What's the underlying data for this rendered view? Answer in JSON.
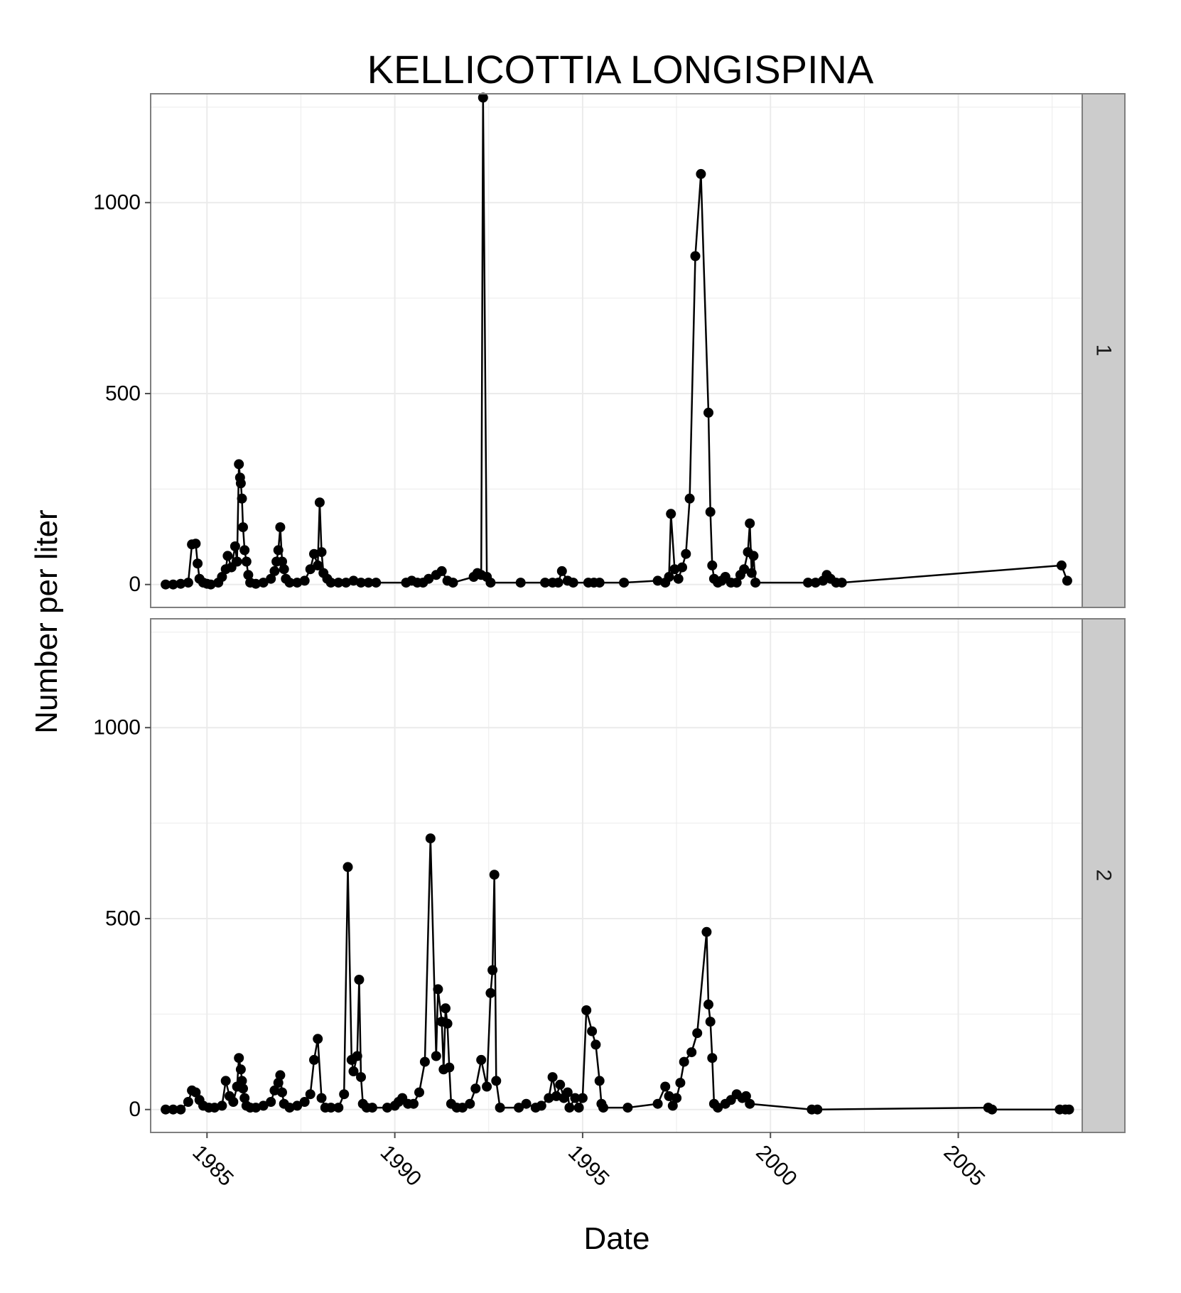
{
  "chart_data": {
    "type": "line",
    "title": "KELLICOTTIA LONGISPINA",
    "xlabel": "Date",
    "ylabel": "Number per liter",
    "xlim": [
      1983.5,
      2008.3
    ],
    "ylim": [
      -60,
      1285
    ],
    "x_ticks": [
      1985,
      1990,
      1995,
      2000,
      2005
    ],
    "y_ticks": [
      0,
      500,
      1000
    ],
    "grid": true,
    "legend": "none",
    "markers": "filled-circle",
    "colors": {
      "line": "#000000",
      "panel_bg": "#ffffff",
      "grid": "#ebebeb",
      "strip_bg": "#cccccc",
      "border": "#7f7f7f"
    },
    "panels": [
      {
        "strip_label": "1",
        "points": [
          [
            1983.9,
            0
          ],
          [
            1984.1,
            0
          ],
          [
            1984.3,
            2
          ],
          [
            1984.5,
            5
          ],
          [
            1984.6,
            105
          ],
          [
            1984.7,
            107
          ],
          [
            1984.75,
            55
          ],
          [
            1984.8,
            15
          ],
          [
            1984.9,
            5
          ],
          [
            1985.0,
            2
          ],
          [
            1985.1,
            0
          ],
          [
            1985.3,
            5
          ],
          [
            1985.4,
            20
          ],
          [
            1985.5,
            40
          ],
          [
            1985.55,
            75
          ],
          [
            1985.65,
            45
          ],
          [
            1985.75,
            100
          ],
          [
            1985.8,
            60
          ],
          [
            1985.85,
            315
          ],
          [
            1985.88,
            280
          ],
          [
            1985.9,
            265
          ],
          [
            1985.93,
            225
          ],
          [
            1985.96,
            150
          ],
          [
            1986.0,
            90
          ],
          [
            1986.05,
            60
          ],
          [
            1986.1,
            25
          ],
          [
            1986.15,
            5
          ],
          [
            1986.3,
            2
          ],
          [
            1986.5,
            5
          ],
          [
            1986.7,
            15
          ],
          [
            1986.8,
            35
          ],
          [
            1986.85,
            60
          ],
          [
            1986.9,
            90
          ],
          [
            1986.95,
            150
          ],
          [
            1987.0,
            60
          ],
          [
            1987.05,
            40
          ],
          [
            1987.1,
            15
          ],
          [
            1987.2,
            5
          ],
          [
            1987.4,
            5
          ],
          [
            1987.6,
            10
          ],
          [
            1987.75,
            40
          ],
          [
            1987.85,
            80
          ],
          [
            1987.95,
            50
          ],
          [
            1988.0,
            215
          ],
          [
            1988.05,
            85
          ],
          [
            1988.1,
            30
          ],
          [
            1988.2,
            15
          ],
          [
            1988.3,
            5
          ],
          [
            1988.5,
            5
          ],
          [
            1988.7,
            5
          ],
          [
            1988.9,
            10
          ],
          [
            1989.1,
            5
          ],
          [
            1989.3,
            5
          ],
          [
            1989.5,
            5
          ],
          [
            1990.3,
            5
          ],
          [
            1990.45,
            10
          ],
          [
            1990.6,
            5
          ],
          [
            1990.75,
            5
          ],
          [
            1990.9,
            15
          ],
          [
            1991.1,
            25
          ],
          [
            1991.25,
            35
          ],
          [
            1991.4,
            10
          ],
          [
            1991.55,
            5
          ],
          [
            1992.1,
            20
          ],
          [
            1992.2,
            30
          ],
          [
            1992.3,
            25
          ],
          [
            1992.35,
            1275
          ],
          [
            1992.45,
            20
          ],
          [
            1992.55,
            5
          ],
          [
            1993.35,
            5
          ],
          [
            1994.0,
            5
          ],
          [
            1994.2,
            5
          ],
          [
            1994.35,
            5
          ],
          [
            1994.45,
            35
          ],
          [
            1994.6,
            10
          ],
          [
            1994.75,
            5
          ],
          [
            1995.15,
            5
          ],
          [
            1995.3,
            5
          ],
          [
            1995.45,
            5
          ],
          [
            1996.1,
            5
          ],
          [
            1997.0,
            10
          ],
          [
            1997.2,
            5
          ],
          [
            1997.3,
            20
          ],
          [
            1997.35,
            185
          ],
          [
            1997.45,
            40
          ],
          [
            1997.55,
            15
          ],
          [
            1997.65,
            45
          ],
          [
            1997.75,
            80
          ],
          [
            1997.85,
            225
          ],
          [
            1998.0,
            860
          ],
          [
            1998.15,
            1075
          ],
          [
            1998.35,
            450
          ],
          [
            1998.4,
            190
          ],
          [
            1998.45,
            50
          ],
          [
            1998.5,
            15
          ],
          [
            1998.6,
            5
          ],
          [
            1998.7,
            10
          ],
          [
            1998.8,
            20
          ],
          [
            1998.95,
            5
          ],
          [
            1999.1,
            5
          ],
          [
            1999.2,
            25
          ],
          [
            1999.3,
            40
          ],
          [
            1999.4,
            85
          ],
          [
            1999.45,
            160
          ],
          [
            1999.5,
            30
          ],
          [
            1999.55,
            75
          ],
          [
            1999.6,
            5
          ],
          [
            2001.0,
            5
          ],
          [
            2001.2,
            5
          ],
          [
            2001.4,
            10
          ],
          [
            2001.5,
            25
          ],
          [
            2001.6,
            15
          ],
          [
            2001.75,
            5
          ],
          [
            2001.9,
            5
          ],
          [
            2007.75,
            50
          ],
          [
            2007.9,
            10
          ]
        ]
      },
      {
        "strip_label": "2",
        "points": [
          [
            1983.9,
            0
          ],
          [
            1984.1,
            0
          ],
          [
            1984.3,
            0
          ],
          [
            1984.5,
            20
          ],
          [
            1984.6,
            50
          ],
          [
            1984.7,
            45
          ],
          [
            1984.8,
            25
          ],
          [
            1984.9,
            10
          ],
          [
            1985.05,
            5
          ],
          [
            1985.2,
            5
          ],
          [
            1985.4,
            10
          ],
          [
            1985.5,
            75
          ],
          [
            1985.6,
            35
          ],
          [
            1985.7,
            20
          ],
          [
            1985.8,
            60
          ],
          [
            1985.85,
            135
          ],
          [
            1985.9,
            105
          ],
          [
            1985.93,
            75
          ],
          [
            1985.96,
            55
          ],
          [
            1986.0,
            30
          ],
          [
            1986.05,
            10
          ],
          [
            1986.15,
            5
          ],
          [
            1986.3,
            5
          ],
          [
            1986.5,
            10
          ],
          [
            1986.7,
            20
          ],
          [
            1986.8,
            50
          ],
          [
            1986.9,
            70
          ],
          [
            1986.95,
            90
          ],
          [
            1987.0,
            45
          ],
          [
            1987.05,
            15
          ],
          [
            1987.2,
            5
          ],
          [
            1987.4,
            10
          ],
          [
            1987.6,
            20
          ],
          [
            1987.75,
            40
          ],
          [
            1987.85,
            130
          ],
          [
            1987.95,
            185
          ],
          [
            1988.05,
            30
          ],
          [
            1988.15,
            5
          ],
          [
            1988.3,
            5
          ],
          [
            1988.5,
            5
          ],
          [
            1988.65,
            40
          ],
          [
            1988.75,
            635
          ],
          [
            1988.85,
            130
          ],
          [
            1988.9,
            100
          ],
          [
            1989.0,
            140
          ],
          [
            1989.05,
            340
          ],
          [
            1989.1,
            85
          ],
          [
            1989.15,
            15
          ],
          [
            1989.25,
            5
          ],
          [
            1989.4,
            5
          ],
          [
            1989.8,
            5
          ],
          [
            1990.0,
            10
          ],
          [
            1990.1,
            20
          ],
          [
            1990.2,
            30
          ],
          [
            1990.35,
            15
          ],
          [
            1990.5,
            15
          ],
          [
            1990.65,
            45
          ],
          [
            1990.8,
            125
          ],
          [
            1990.95,
            710
          ],
          [
            1991.1,
            140
          ],
          [
            1991.15,
            315
          ],
          [
            1991.25,
            230
          ],
          [
            1991.3,
            105
          ],
          [
            1991.35,
            265
          ],
          [
            1991.4,
            225
          ],
          [
            1991.45,
            110
          ],
          [
            1991.5,
            15
          ],
          [
            1991.65,
            5
          ],
          [
            1991.8,
            5
          ],
          [
            1992.0,
            15
          ],
          [
            1992.15,
            55
          ],
          [
            1992.3,
            130
          ],
          [
            1992.45,
            60
          ],
          [
            1992.55,
            305
          ],
          [
            1992.6,
            365
          ],
          [
            1992.65,
            615
          ],
          [
            1992.7,
            75
          ],
          [
            1992.8,
            5
          ],
          [
            1993.3,
            5
          ],
          [
            1993.5,
            15
          ],
          [
            1993.75,
            5
          ],
          [
            1993.9,
            10
          ],
          [
            1994.1,
            30
          ],
          [
            1994.2,
            85
          ],
          [
            1994.3,
            35
          ],
          [
            1994.4,
            65
          ],
          [
            1994.5,
            30
          ],
          [
            1994.6,
            45
          ],
          [
            1994.65,
            5
          ],
          [
            1994.8,
            30
          ],
          [
            1994.9,
            5
          ],
          [
            1995.0,
            30
          ],
          [
            1995.1,
            260
          ],
          [
            1995.25,
            205
          ],
          [
            1995.35,
            170
          ],
          [
            1995.45,
            75
          ],
          [
            1995.5,
            15
          ],
          [
            1995.55,
            5
          ],
          [
            1996.2,
            5
          ],
          [
            1997.0,
            15
          ],
          [
            1997.2,
            60
          ],
          [
            1997.3,
            35
          ],
          [
            1997.4,
            10
          ],
          [
            1997.5,
            30
          ],
          [
            1997.6,
            70
          ],
          [
            1997.7,
            125
          ],
          [
            1997.9,
            150
          ],
          [
            1998.05,
            200
          ],
          [
            1998.3,
            465
          ],
          [
            1998.35,
            275
          ],
          [
            1998.4,
            230
          ],
          [
            1998.45,
            135
          ],
          [
            1998.5,
            15
          ],
          [
            1998.6,
            5
          ],
          [
            1998.8,
            15
          ],
          [
            1998.95,
            25
          ],
          [
            1999.1,
            40
          ],
          [
            1999.25,
            30
          ],
          [
            1999.35,
            35
          ],
          [
            1999.45,
            15
          ],
          [
            2001.1,
            0
          ],
          [
            2001.25,
            0
          ],
          [
            2005.8,
            5
          ],
          [
            2005.9,
            0
          ],
          [
            2007.7,
            0
          ],
          [
            2007.85,
            0
          ],
          [
            2007.95,
            0
          ]
        ]
      }
    ]
  }
}
